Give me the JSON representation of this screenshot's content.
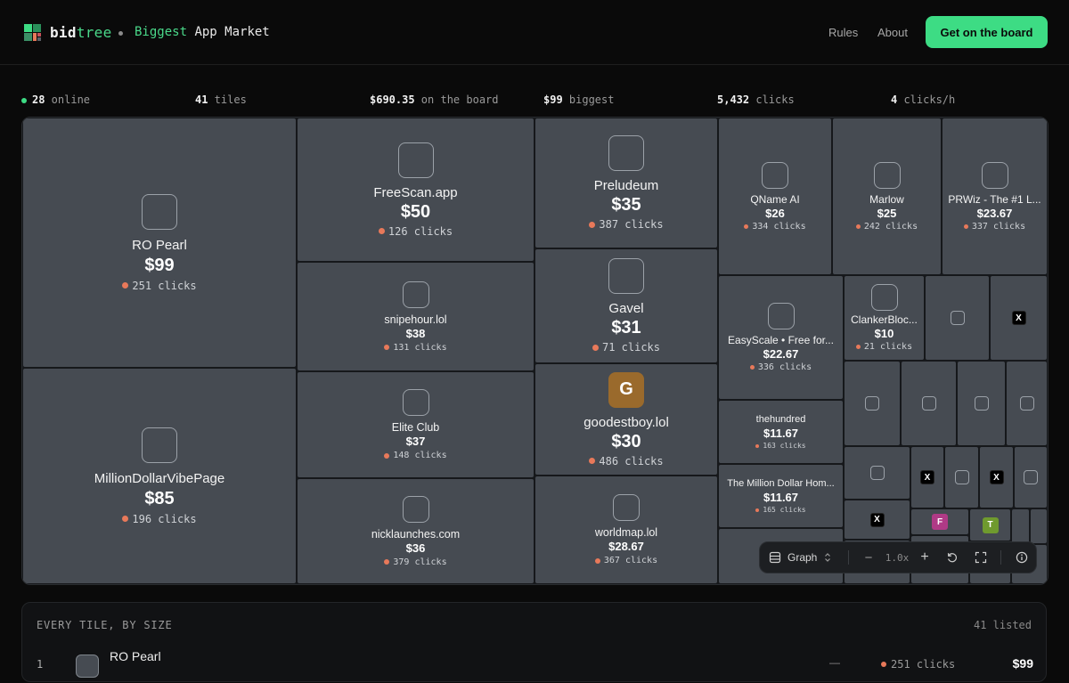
{
  "header": {
    "brand_part1": "bid",
    "brand_part2": "tree",
    "tagline_highlight": "Biggest",
    "tagline_rest": " App Market",
    "nav_rules": "Rules",
    "nav_about": "About",
    "cta_label": "Get on the board",
    "accent_color": "#3ddc84"
  },
  "stats": {
    "online_value": "28",
    "online_label": " online",
    "tiles_value": "41",
    "tiles_label": " tiles",
    "board_value": "$690.35",
    "board_label": " on the board",
    "biggest_value": "$99",
    "biggest_label": " biggest",
    "clicks_value": "5,432",
    "clicks_label": " clicks",
    "rate_value": "4",
    "rate_label": " clicks/h"
  },
  "tiles": [
    {
      "name": "RO Pearl",
      "price": "$99",
      "clicks": "251 clicks"
    },
    {
      "name": "MillionDollarVibePage",
      "price": "$85",
      "clicks": "196 clicks"
    },
    {
      "name": "FreeScan.app",
      "price": "$50",
      "clicks": "126 clicks"
    },
    {
      "name": "snipehour.lol",
      "price": "$38",
      "clicks": "131 clicks"
    },
    {
      "name": "Elite Club",
      "price": "$37",
      "clicks": "148 clicks"
    },
    {
      "name": "nicklaunches.com",
      "price": "$36",
      "clicks": "379 clicks"
    },
    {
      "name": "Preludeum",
      "price": "$35",
      "clicks": "387 clicks"
    },
    {
      "name": "Gavel",
      "price": "$31",
      "clicks": "71 clicks"
    },
    {
      "name": "goodestboy.lol",
      "price": "$30",
      "clicks": "486 clicks",
      "icon_letter": "G",
      "icon_color": "#9a6a2c"
    },
    {
      "name": "worldmap.lol",
      "price": "$28.67",
      "clicks": "367 clicks"
    },
    {
      "name": "QName AI",
      "price": "$26",
      "clicks": "334 clicks"
    },
    {
      "name": "Marlow",
      "price": "$25",
      "clicks": "242 clicks"
    },
    {
      "name": "PRWiz - The #1 L...",
      "price": "$23.67",
      "clicks": "337 clicks"
    },
    {
      "name": "EasyScale • Free for...",
      "price": "$22.67",
      "clicks": "336 clicks"
    },
    {
      "name": "ClankerBloc...",
      "price": "$10",
      "clicks": "21 clicks"
    },
    {
      "name": "thehundred",
      "price": "$11.67",
      "clicks": "163 clicks"
    },
    {
      "name": "The Million Dollar Hom...",
      "price": "$11.67",
      "clicks": "165 clicks"
    }
  ],
  "tile_icons": {
    "x_glyph": "X",
    "letter_f": "F",
    "letter_f_color": "#b03a86",
    "letter_t": "T",
    "letter_t_color": "#6f9a2e"
  },
  "controls": {
    "view_label": "Graph",
    "minus": "−",
    "zoom": "1.0x",
    "plus": "+"
  },
  "listing": {
    "heading": "EVERY TILE, BY SIZE",
    "count": "41 listed",
    "rows": [
      {
        "rank": "1",
        "name": "RO Pearl",
        "dash": "—",
        "clicks": "251 clicks",
        "price": "$99"
      }
    ]
  }
}
